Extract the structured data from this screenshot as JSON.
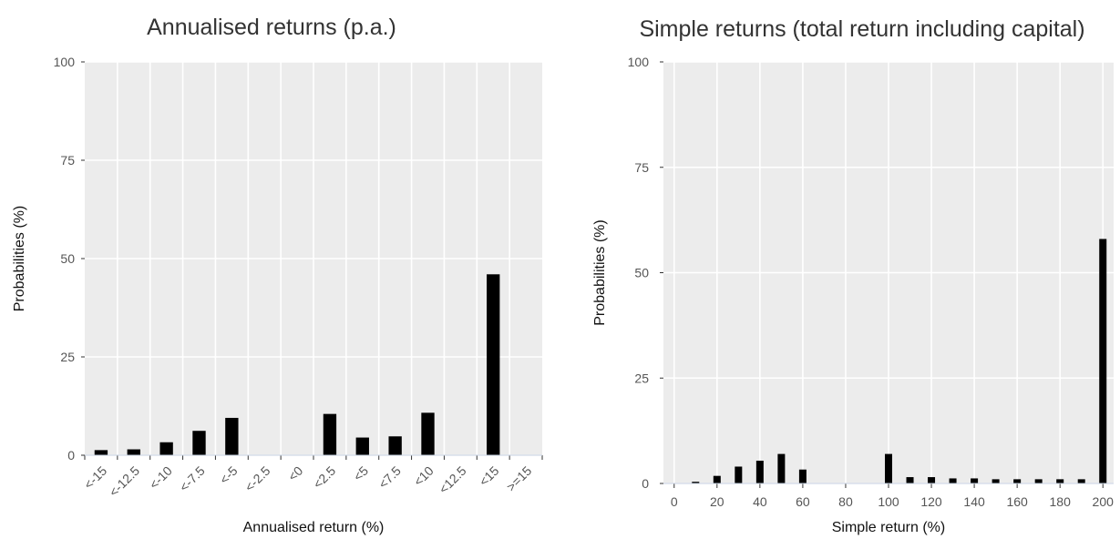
{
  "chart_data": [
    {
      "type": "bar",
      "title": "Annualised returns (p.a.)",
      "xlabel": "Annualised return (%)",
      "ylabel": "Probabilities (%)",
      "ylim": [
        0,
        100
      ],
      "yticks": [
        "0",
        "25",
        "50",
        "75",
        "100"
      ],
      "grid": true,
      "categories": [
        "<-15",
        "<-12.5",
        "<-10",
        "<-7.5",
        "<-5",
        "<-2.5",
        "<0",
        "<2.5",
        "<5",
        "<7.5",
        "<10",
        "<12.5",
        "<15",
        ">=15"
      ],
      "values": [
        1.3,
        1.5,
        3.3,
        6.2,
        9.5,
        0,
        0,
        10.5,
        4.5,
        4.8,
        10.8,
        0,
        46.0,
        0
      ]
    },
    {
      "type": "bar",
      "title": "Simple returns (total return including capital)",
      "xlabel": "Simple return (%)",
      "ylabel": "Probabilities (%)",
      "ylim": [
        0,
        100
      ],
      "xlim": [
        -5,
        205
      ],
      "yticks": [
        "0",
        "25",
        "50",
        "75",
        "100"
      ],
      "xticks": [
        "0",
        "20",
        "40",
        "60",
        "80",
        "100",
        "120",
        "140",
        "160",
        "180",
        "200"
      ],
      "grid": true,
      "x": [
        10,
        20,
        30,
        40,
        50,
        60,
        100,
        110,
        120,
        130,
        140,
        150,
        160,
        170,
        180,
        190,
        200
      ],
      "values": [
        0.4,
        1.8,
        4.0,
        5.4,
        7.0,
        3.3,
        7.0,
        1.5,
        1.5,
        1.2,
        1.2,
        1.0,
        1.0,
        1.0,
        1.0,
        1.0,
        58.0
      ]
    }
  ]
}
